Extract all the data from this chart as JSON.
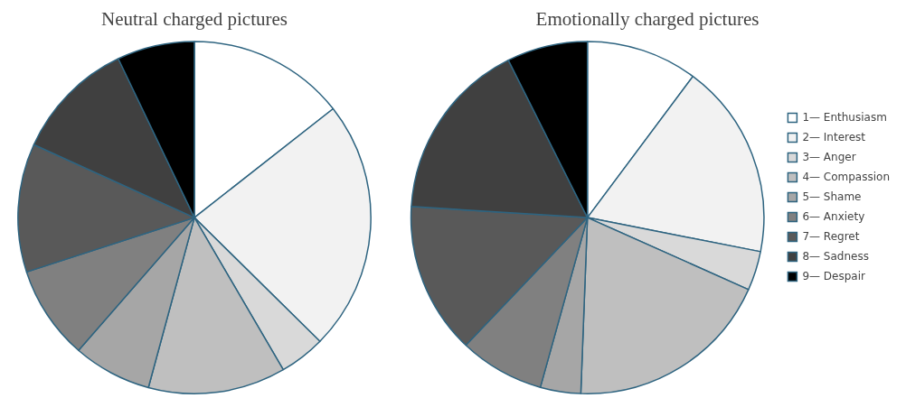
{
  "chart_data": [
    {
      "type": "pie",
      "title": "Neutral charged pictures",
      "categories": [
        null,
        null,
        null,
        null,
        null,
        null,
        null,
        null,
        null
      ],
      "values": [
        14.4,
        23,
        4.2,
        12.6,
        7.2,
        8.6,
        11.8,
        11.1,
        7.1
      ],
      "colors": [
        "#ffffff",
        "#f2f2f2",
        "#d9d9d9",
        "#bfbfbf",
        "#a6a6a6",
        "#808080",
        "#595959",
        "#404040",
        "#000000"
      ],
      "legend": false
    },
    {
      "type": "pie",
      "title": "Emotionally charged pictures",
      "categories": [
        "1— Enthusiasm",
        "2— Interest",
        "3— Anger",
        "4— Compassion",
        "5— Shame",
        "6— Anxiety",
        "7— Regret",
        "8— Sadness",
        "9— Despair"
      ],
      "values": [
        10.2,
        17.9,
        3.6,
        18.9,
        3.7,
        7.8,
        13.9,
        16.6,
        7.4
      ],
      "colors": [
        "#ffffff",
        "#f2f2f2",
        "#d9d9d9",
        "#bfbfbf",
        "#a6a6a6",
        "#808080",
        "#595959",
        "#404040",
        "#000000"
      ],
      "legend": "right"
    }
  ]
}
